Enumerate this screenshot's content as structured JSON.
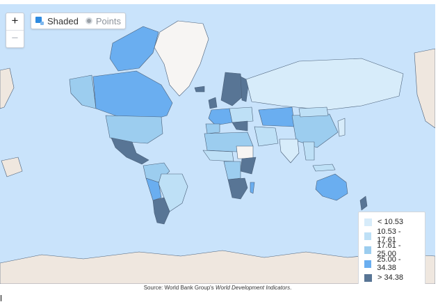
{
  "controls": {
    "zoom_in": "+",
    "zoom_out": "−",
    "view_toggle": [
      {
        "label": "Shaded",
        "icon": "shaded-map-icon",
        "active": true
      },
      {
        "label": "Points",
        "icon": "points-map-icon",
        "active": false
      }
    ]
  },
  "legend": {
    "items": [
      {
        "label": "< 10.53",
        "color": "#d7ecfa"
      },
      {
        "label": "10.53 - 17.61",
        "color": "#bee0f6"
      },
      {
        "label": "17.61 - 25.00",
        "color": "#9ccdef"
      },
      {
        "label": "25.00 - 34.38",
        "color": "#6aaef0"
      },
      {
        "label": "> 34.38",
        "color": "#587595"
      }
    ]
  },
  "caption": {
    "prefix": "Source: World Bank Group's ",
    "title": "World Development Indicators",
    "suffix": "."
  },
  "colors": {
    "ocean": "#c9e3fb",
    "land_nodata": "#f7f5f3",
    "polar": "#efe7df",
    "border": "#4a5f78"
  }
}
